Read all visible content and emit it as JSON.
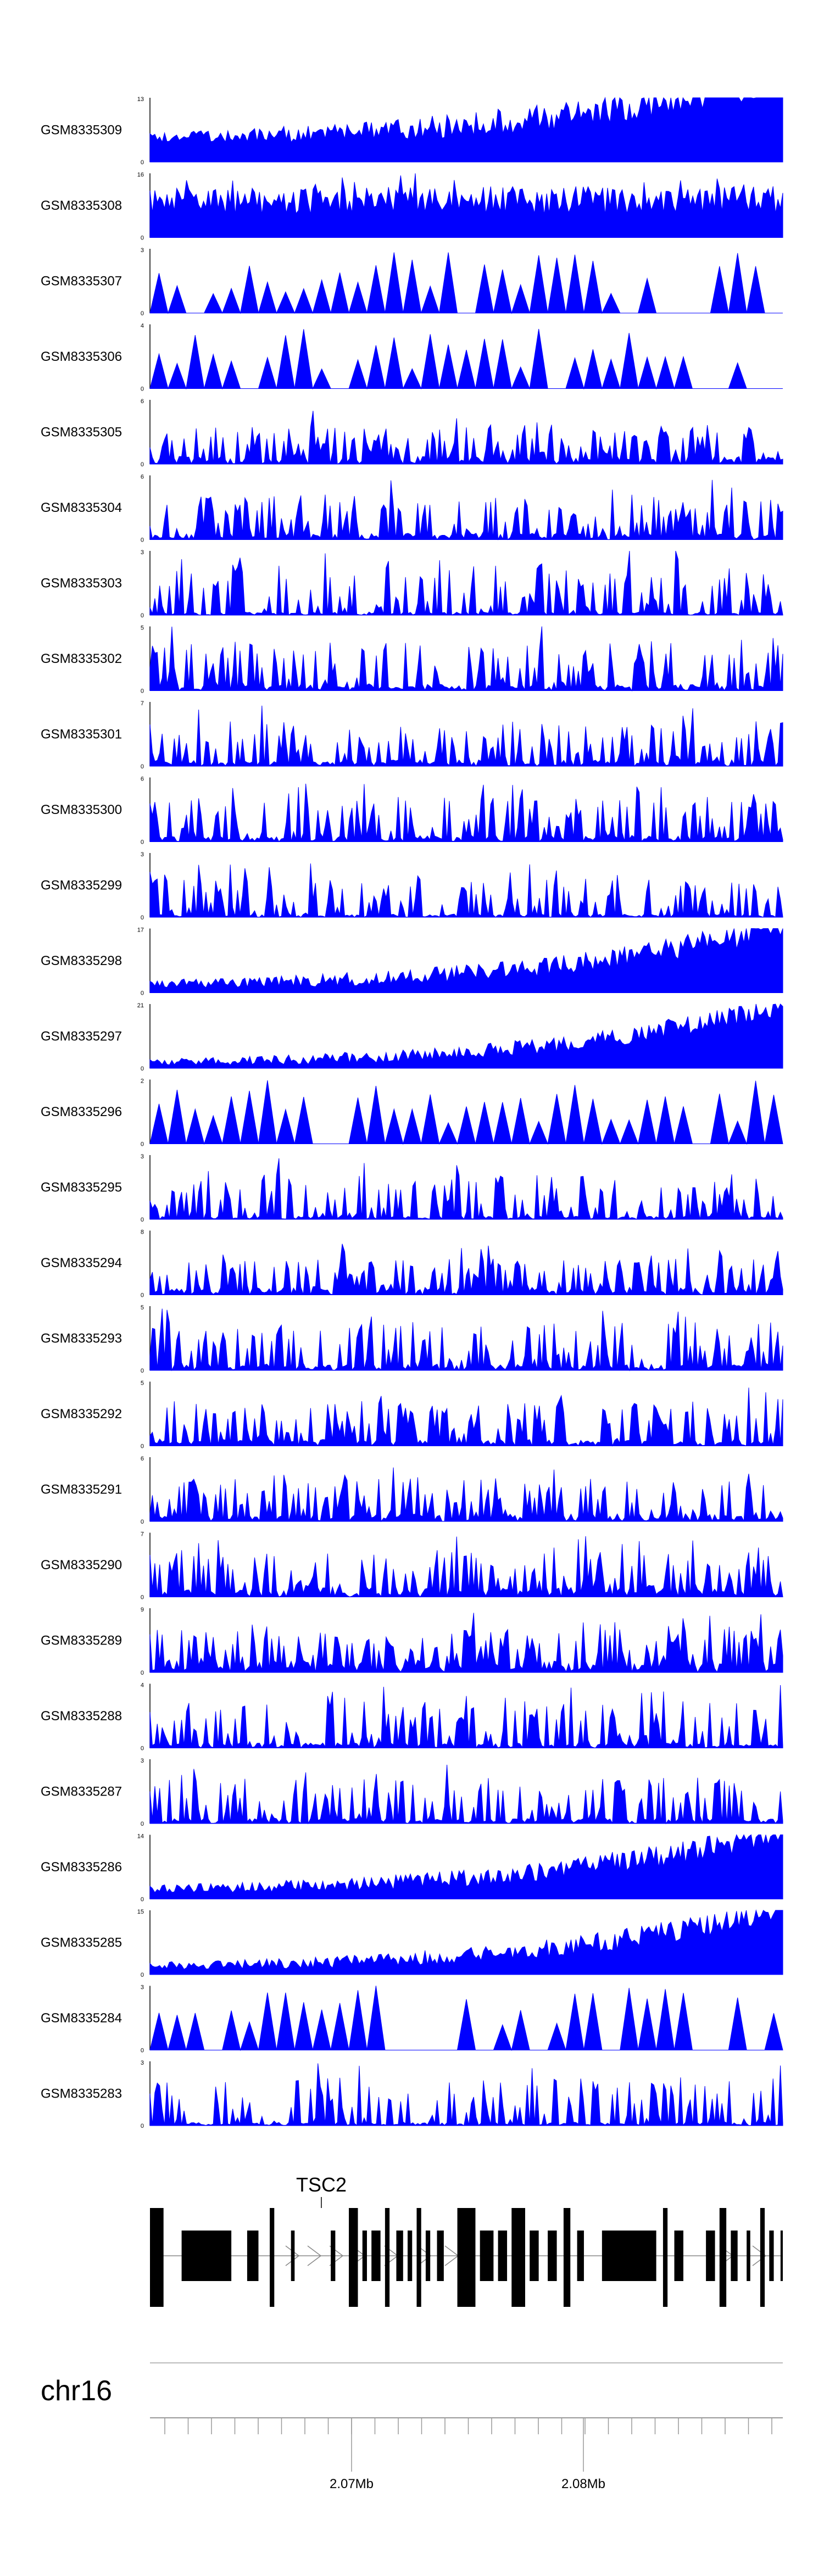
{
  "chart_data": {
    "type": "area",
    "fill_color": "#0000ff",
    "tracks": [
      {
        "name": "GSM8335309",
        "ymax": "13",
        "ymin": "0",
        "seed": 9309,
        "mode": "rise",
        "base": 0.3,
        "amp": 0.42
      },
      {
        "name": "GSM8335308",
        "ymax": "16",
        "ymin": "0",
        "seed": 9308,
        "mode": "dense",
        "base": 0.35,
        "amp": 0.45
      },
      {
        "name": "GSM8335307",
        "ymax": "3",
        "ymin": "0",
        "seed": 9307,
        "mode": "sparse",
        "base": 0.0,
        "amp": 0.7
      },
      {
        "name": "GSM8335306",
        "ymax": "4",
        "ymin": "0",
        "seed": 9306,
        "mode": "sparse",
        "base": 0.0,
        "amp": 0.65
      },
      {
        "name": "GSM8335305",
        "ymax": "6",
        "ymin": "0",
        "seed": 9305,
        "mode": "spiky",
        "base": 0.12,
        "amp": 0.5
      },
      {
        "name": "GSM8335304",
        "ymax": "6",
        "ymin": "0",
        "seed": 9304,
        "mode": "spiky",
        "base": 0.1,
        "amp": 0.6
      },
      {
        "name": "GSM8335303",
        "ymax": "3",
        "ymin": "0",
        "seed": 9303,
        "mode": "spiky",
        "base": 0.05,
        "amp": 0.75
      },
      {
        "name": "GSM8335302",
        "ymax": "5",
        "ymin": "0",
        "seed": 9302,
        "mode": "spiky",
        "base": 0.1,
        "amp": 0.7
      },
      {
        "name": "GSM8335301",
        "ymax": "7",
        "ymin": "0",
        "seed": 9301,
        "mode": "spiky",
        "base": 0.1,
        "amp": 0.6
      },
      {
        "name": "GSM8335300",
        "ymax": "6",
        "ymin": "0",
        "seed": 9300,
        "mode": "spiky",
        "base": 0.1,
        "amp": 0.6
      },
      {
        "name": "GSM8335299",
        "ymax": "3",
        "ymin": "0",
        "seed": 9299,
        "mode": "spiky",
        "base": 0.05,
        "amp": 0.55
      },
      {
        "name": "GSM8335298",
        "ymax": "17",
        "ymin": "0",
        "seed": 9298,
        "mode": "rise",
        "base": 0.08,
        "amp": 0.3
      },
      {
        "name": "GSM8335297",
        "ymax": "21",
        "ymin": "0",
        "seed": 9297,
        "mode": "rise",
        "base": 0.05,
        "amp": 0.25
      },
      {
        "name": "GSM8335296",
        "ymax": "2",
        "ymin": "0",
        "seed": 9296,
        "mode": "sparse",
        "base": 0.0,
        "amp": 0.7
      },
      {
        "name": "GSM8335295",
        "ymax": "3",
        "ymin": "0",
        "seed": 9295,
        "mode": "spiky",
        "base": 0.05,
        "amp": 0.65
      },
      {
        "name": "GSM8335294",
        "ymax": "8",
        "ymin": "0",
        "seed": 9294,
        "mode": "spiky",
        "base": 0.12,
        "amp": 0.45
      },
      {
        "name": "GSM8335293",
        "ymax": "5",
        "ymin": "0",
        "seed": 9293,
        "mode": "spiky",
        "base": 0.1,
        "amp": 0.65
      },
      {
        "name": "GSM8335292",
        "ymax": "5",
        "ymin": "0",
        "seed": 9292,
        "mode": "spiky",
        "base": 0.1,
        "amp": 0.6
      },
      {
        "name": "GSM8335291",
        "ymax": "6",
        "ymin": "0",
        "seed": 9291,
        "mode": "spiky",
        "base": 0.12,
        "amp": 0.55
      },
      {
        "name": "GSM8335290",
        "ymax": "7",
        "ymin": "0",
        "seed": 9290,
        "mode": "spiky",
        "base": 0.15,
        "amp": 0.55
      },
      {
        "name": "GSM8335289",
        "ymax": "9",
        "ymin": "0",
        "seed": 9289,
        "mode": "spiky",
        "base": 0.18,
        "amp": 0.5
      },
      {
        "name": "GSM8335288",
        "ymax": "4",
        "ymin": "0",
        "seed": 9288,
        "mode": "spiky",
        "base": 0.08,
        "amp": 0.65
      },
      {
        "name": "GSM8335287",
        "ymax": "3",
        "ymin": "0",
        "seed": 9287,
        "mode": "spiky",
        "base": 0.08,
        "amp": 0.65
      },
      {
        "name": "GSM8335286",
        "ymax": "14",
        "ymin": "0",
        "seed": 9286,
        "mode": "rise",
        "base": 0.1,
        "amp": 0.3
      },
      {
        "name": "GSM8335285",
        "ymax": "15",
        "ymin": "0",
        "seed": 9285,
        "mode": "rise",
        "base": 0.08,
        "amp": 0.28
      },
      {
        "name": "GSM8335284",
        "ymax": "3",
        "ymin": "0",
        "seed": 9284,
        "mode": "sparse",
        "base": 0.0,
        "amp": 0.75
      },
      {
        "name": "GSM8335283",
        "ymax": "3",
        "ymin": "0",
        "seed": 9283,
        "mode": "spiky",
        "base": 0.05,
        "amp": 0.7
      }
    ],
    "gene": {
      "name": "TSC2",
      "exons": [
        [
          0,
          30
        ],
        [
          70,
          180
        ],
        [
          215,
          240
        ],
        [
          265,
          275
        ],
        [
          312,
          320
        ],
        [
          400,
          410
        ],
        [
          440,
          460
        ],
        [
          470,
          480
        ],
        [
          490,
          510
        ],
        [
          520,
          530
        ],
        [
          545,
          560
        ],
        [
          570,
          580
        ],
        [
          590,
          600
        ],
        [
          610,
          620
        ],
        [
          635,
          650
        ],
        [
          680,
          720
        ],
        [
          730,
          760
        ],
        [
          770,
          790
        ],
        [
          800,
          830
        ],
        [
          840,
          860
        ],
        [
          880,
          900
        ],
        [
          915,
          930
        ],
        [
          945,
          960
        ],
        [
          1000,
          1120
        ],
        [
          1135,
          1145
        ],
        [
          1160,
          1180
        ],
        [
          1230,
          1250
        ],
        [
          1260,
          1275
        ],
        [
          1285,
          1300
        ],
        [
          1320,
          1328
        ],
        [
          1350,
          1360
        ],
        [
          1370,
          1380
        ],
        [
          1395,
          1400
        ]
      ]
    },
    "chromosome": "chr16",
    "axis": {
      "labels": [
        "2.07Mb",
        "2.08Mb"
      ]
    }
  }
}
